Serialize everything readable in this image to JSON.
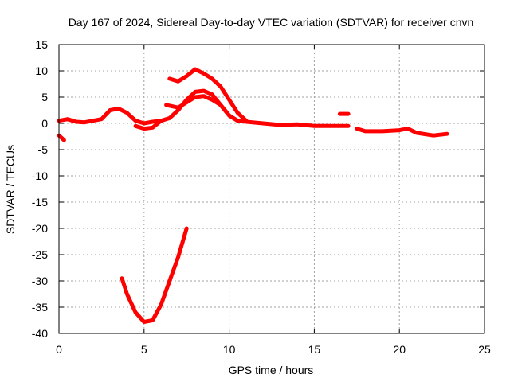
{
  "chart_data": {
    "type": "line",
    "title": "Day 167 of 2024, Sidereal Day-to-day VTEC variation (SDTVAR) for receiver cnvn",
    "xlabel": "GPS time / hours",
    "ylabel": "SDTVAR / TECUs",
    "xlim": [
      0,
      25
    ],
    "ylim": [
      -40,
      15
    ],
    "xticks": [
      0,
      5,
      10,
      15,
      20,
      25
    ],
    "yticks": [
      15,
      10,
      5,
      0,
      -5,
      -10,
      -15,
      -20,
      -25,
      -30,
      -35,
      -40
    ],
    "grid": true,
    "color": "#ff0000",
    "series": [
      {
        "name": "start segment",
        "x": [
          0.0,
          0.3
        ],
        "y": [
          -2.3,
          -3.2
        ]
      },
      {
        "name": "main trace",
        "x": [
          0.0,
          0.5,
          1.0,
          1.5,
          2.0,
          2.5,
          3.0,
          3.5,
          4.0,
          4.5,
          5.0,
          5.5,
          6.0,
          6.5,
          7.0,
          7.5,
          8.0,
          8.5,
          9.0,
          9.5,
          10.0,
          10.5,
          11.0,
          12.0,
          13.0,
          14.0,
          15.0,
          16.0,
          17.0
        ],
        "y": [
          0.5,
          0.8,
          0.3,
          0.2,
          0.5,
          0.8,
          2.5,
          2.8,
          2.0,
          0.5,
          0.0,
          0.3,
          0.5,
          1.0,
          2.5,
          4.5,
          6.0,
          6.2,
          5.5,
          3.5,
          1.5,
          0.5,
          0.3,
          0.0,
          -0.3,
          -0.2,
          -0.5,
          -0.5,
          -0.5
        ]
      },
      {
        "name": "dip near 5h",
        "x": [
          4.5,
          5.0,
          5.5,
          6.0
        ],
        "y": [
          -0.5,
          -1.0,
          -0.8,
          0.5
        ]
      },
      {
        "name": "upper enhancement",
        "x": [
          6.5,
          7.0,
          7.5,
          8.0,
          8.5,
          9.0,
          9.5,
          10.0,
          10.5,
          11.0
        ],
        "y": [
          8.5,
          8.0,
          9.0,
          10.3,
          9.5,
          8.5,
          7.0,
          4.5,
          2.0,
          0.5
        ]
      },
      {
        "name": "middle enhancement",
        "x": [
          6.3,
          7.0,
          7.5,
          8.0,
          8.5,
          9.0,
          9.5,
          10.0,
          10.5
        ],
        "y": [
          3.5,
          3.0,
          4.0,
          5.0,
          5.2,
          4.5,
          3.5,
          1.5,
          0.5
        ]
      },
      {
        "name": "short arc",
        "x": [
          16.5,
          17.0
        ],
        "y": [
          1.8,
          1.8
        ]
      },
      {
        "name": "late trace",
        "x": [
          17.5,
          18.0,
          19.0,
          20.0,
          20.5,
          21.0,
          22.0,
          22.8
        ],
        "y": [
          -1.0,
          -1.5,
          -1.5,
          -1.3,
          -1.0,
          -1.8,
          -2.3,
          -2.0
        ]
      },
      {
        "name": "negative excursion",
        "x": [
          3.7,
          4.0,
          4.5,
          5.0,
          5.5,
          6.0,
          6.5,
          7.0,
          7.5
        ],
        "y": [
          -29.5,
          -32.5,
          -36.0,
          -37.8,
          -37.5,
          -34.5,
          -30.0,
          -25.5,
          -20.0
        ]
      }
    ]
  }
}
